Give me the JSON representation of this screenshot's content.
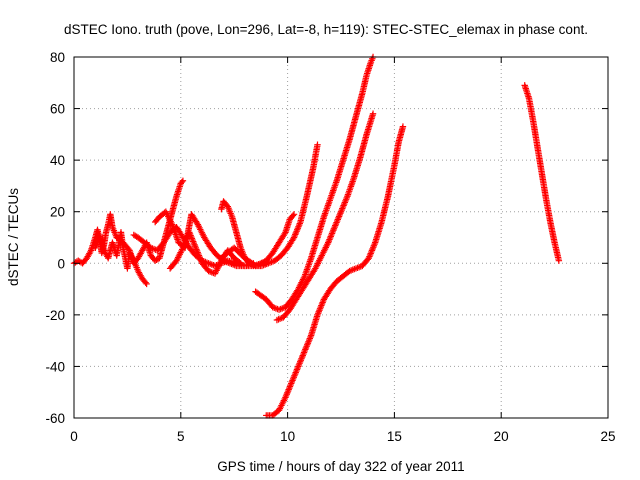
{
  "chart_data": {
    "type": "scatter",
    "title": "dSTEC Iono. truth (pove, Lon=296, Lat=-8, h=119): STEC-STEC_elemax in phase cont.",
    "xlabel": "GPS time / hours of day 322 of year 2011",
    "ylabel": "dSTEC  / TECUs",
    "xlim": [
      0,
      25
    ],
    "ylim": [
      -60,
      80
    ],
    "xticks": [
      0,
      5,
      10,
      15,
      20,
      25
    ],
    "yticks": [
      -60,
      -40,
      -20,
      0,
      20,
      40,
      60,
      80
    ],
    "xtick_labels": [
      "0",
      "5",
      "10",
      "15",
      "20",
      "25"
    ],
    "ytick_labels": [
      "-60",
      "-40",
      "-20",
      "0",
      "20",
      "40",
      "60",
      "80"
    ],
    "grid": true,
    "marker": "plus",
    "color": "#ff0000",
    "series": [
      {
        "x": [
          0.0,
          0.2,
          0.4,
          0.6,
          0.8,
          1.0,
          1.1,
          1.2,
          1.3,
          1.4,
          1.5,
          1.6,
          1.7,
          1.8,
          2.0
        ],
        "y": [
          0,
          1,
          0,
          2,
          5,
          10,
          13,
          9,
          4,
          7,
          12,
          15,
          19,
          14,
          10
        ]
      },
      {
        "x": [
          1.0,
          1.2,
          1.4,
          1.6,
          1.8,
          2.0,
          2.2,
          2.3,
          2.4,
          2.5,
          2.6,
          2.8,
          3.0,
          3.2,
          3.4
        ],
        "y": [
          6,
          11,
          5,
          2,
          8,
          3,
          12,
          6,
          2,
          -2,
          4,
          1,
          -3,
          -6,
          -8
        ]
      },
      {
        "x": [
          2.0,
          2.3,
          2.6,
          2.8,
          3.0,
          3.2,
          3.4,
          3.6,
          3.8,
          4.0,
          4.2,
          4.4,
          4.6,
          4.8,
          5.0,
          5.1
        ],
        "y": [
          10,
          8,
          5,
          0,
          2,
          5,
          8,
          3,
          1,
          2,
          8,
          14,
          20,
          26,
          31,
          32
        ]
      },
      {
        "x": [
          2.8,
          3.0,
          3.3,
          3.6,
          3.9,
          4.2,
          4.5,
          4.8,
          5.1,
          5.4,
          5.7,
          6.0,
          6.3,
          6.6,
          6.9,
          7.2,
          7.6,
          8.0,
          8.4,
          8.8,
          9.0
        ],
        "y": [
          11,
          10,
          8,
          6,
          5,
          8,
          12,
          14,
          10,
          6,
          3,
          1,
          0,
          -1,
          0,
          1,
          0,
          -1,
          -1,
          0,
          0
        ]
      },
      {
        "x": [
          3.8,
          4.0,
          4.3,
          4.6,
          4.9,
          5.2,
          5.5,
          5.8,
          6.1,
          6.4,
          6.7,
          7.0,
          7.3,
          7.6,
          8.0,
          8.4
        ],
        "y": [
          16,
          18,
          20,
          15,
          8,
          6,
          19,
          15,
          10,
          6,
          3,
          1,
          0,
          -1,
          -1,
          0
        ]
      },
      {
        "x": [
          4.5,
          4.8,
          5.1,
          5.4,
          5.7,
          6.0,
          6.3,
          6.6,
          6.9,
          7.2,
          7.5,
          7.8
        ],
        "y": [
          -2,
          1,
          6,
          12,
          6,
          0,
          -3,
          -4,
          1,
          5,
          2,
          0
        ]
      },
      {
        "x": [
          6.9,
          7.0,
          7.2,
          7.4,
          7.6,
          7.8,
          8.0,
          8.2,
          8.5,
          8.8,
          9.1,
          9.4,
          9.7,
          10.0,
          10.3,
          10.6,
          10.9,
          11.2,
          11.4
        ],
        "y": [
          21,
          24,
          22,
          18,
          12,
          6,
          2,
          0,
          -1,
          -1,
          0,
          1,
          3,
          6,
          10,
          16,
          26,
          37,
          46
        ]
      },
      {
        "x": [
          7.0,
          7.5,
          8.0,
          8.5,
          9.0,
          9.3,
          9.6,
          9.9,
          10.1,
          10.3
        ],
        "y": [
          3,
          6,
          2,
          -1,
          1,
          4,
          8,
          12,
          17,
          19
        ]
      },
      {
        "x": [
          8.5,
          9.0,
          9.3,
          9.6,
          9.9,
          10.2,
          10.5,
          10.8,
          11.1,
          11.4,
          11.7,
          12.0,
          12.3,
          12.6,
          12.9,
          13.2,
          13.5,
          13.7,
          13.9,
          14.0
        ],
        "y": [
          -11,
          -14,
          -17,
          -18,
          -17,
          -14,
          -10,
          -5,
          2,
          10,
          18,
          25,
          32,
          40,
          48,
          57,
          66,
          73,
          78,
          80
        ]
      },
      {
        "x": [
          9.5,
          9.8,
          10.1,
          10.4,
          10.7,
          11.0,
          11.3,
          11.6,
          11.9,
          12.2,
          12.5,
          12.8,
          13.1,
          13.4,
          13.7,
          14.0
        ],
        "y": [
          -22,
          -21,
          -18,
          -14,
          -10,
          -6,
          -2,
          3,
          8,
          14,
          20,
          26,
          33,
          41,
          50,
          58
        ]
      },
      {
        "x": [
          9.0,
          9.3,
          9.6,
          9.9,
          10.2,
          10.5,
          10.8,
          11.1,
          11.4,
          11.7,
          12.0,
          12.3,
          12.6,
          12.9,
          13.2,
          13.5,
          13.8,
          14.1,
          14.4,
          14.7,
          15.0,
          15.2,
          15.4
        ],
        "y": [
          -59,
          -59,
          -57,
          -52,
          -46,
          -40,
          -34,
          -28,
          -20,
          -14,
          -10,
          -7,
          -5,
          -3,
          -2,
          -1,
          2,
          8,
          16,
          26,
          38,
          47,
          53
        ]
      },
      {
        "x": [
          21.1,
          21.3,
          21.5,
          21.7,
          21.9,
          22.1,
          22.3,
          22.5,
          22.7
        ],
        "y": [
          69,
          64,
          55,
          45,
          35,
          25,
          16,
          8,
          1
        ]
      }
    ]
  }
}
